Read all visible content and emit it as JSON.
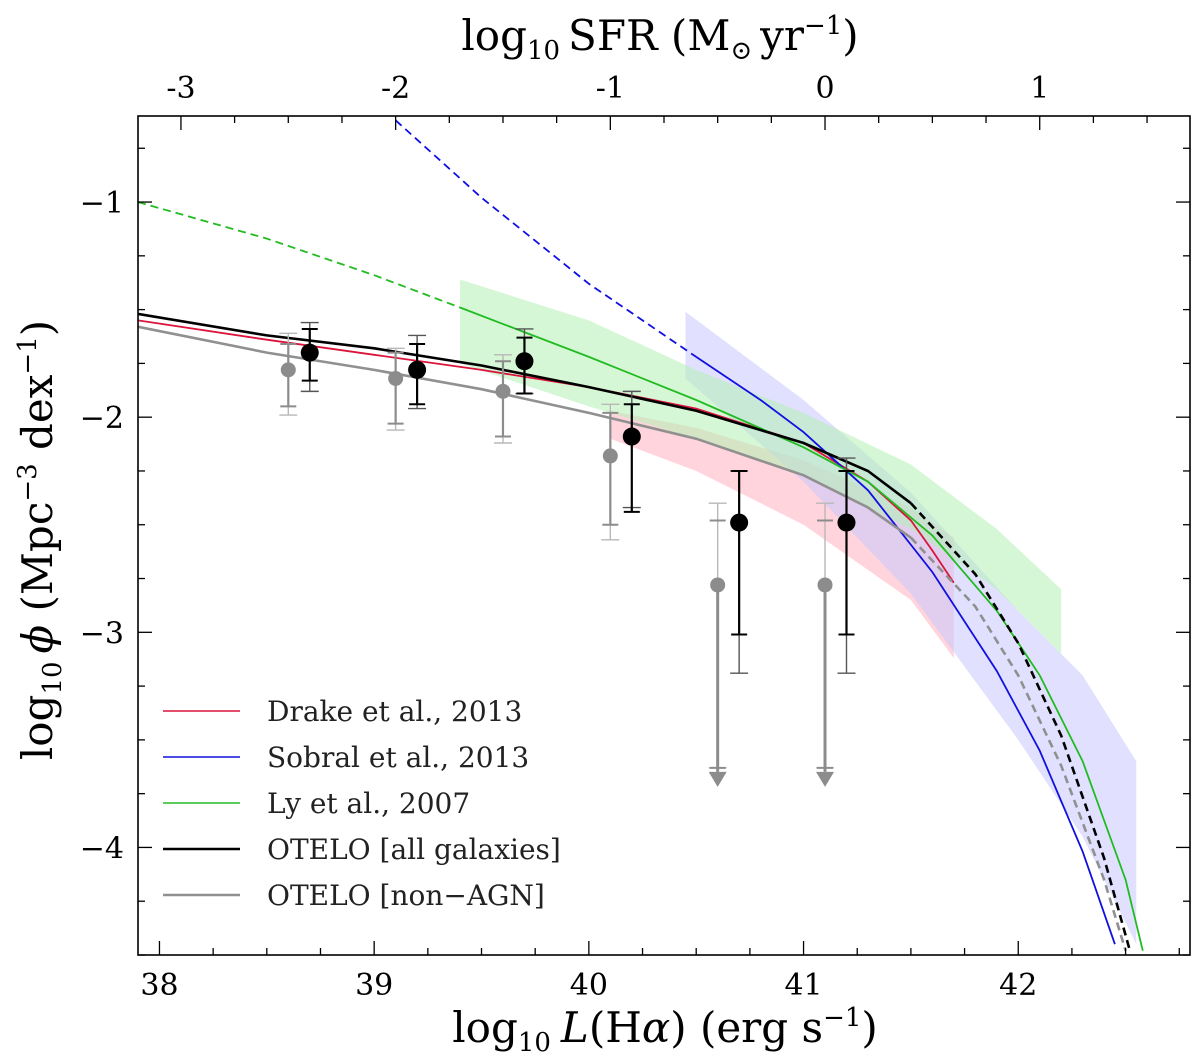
{
  "chart_data": {
    "type": "line",
    "xlabel": "log10 L(Hα) (erg s−1)",
    "ylabel": "log10 φ (Mpc−3 dex−1)",
    "top_xlabel": "log10 SFR (M⊙ yr−1)",
    "xlim": [
      37.9,
      42.8
    ],
    "ylim": [
      -4.5,
      -0.6
    ],
    "xticks": [
      "38",
      "39",
      "40",
      "41",
      "42"
    ],
    "yticks": [
      "−1",
      "−2",
      "−3",
      "−4"
    ],
    "top_xtick_values": [
      -3,
      -2,
      -1,
      0,
      1
    ],
    "top_xticks": [
      "-3",
      "-2",
      "-1",
      "0",
      "1"
    ],
    "top_axis_offset": 41.1,
    "legend_position": "lower-left",
    "series": [
      {
        "name": "Drake et al., 2013",
        "color": "#dc143c",
        "solid": [
          [
            37.9,
            -1.55
          ],
          [
            38.5,
            -1.64
          ],
          [
            39.0,
            -1.71
          ],
          [
            39.5,
            -1.78
          ],
          [
            40.0,
            -1.86
          ],
          [
            40.5,
            -1.96
          ],
          [
            41.0,
            -2.12
          ],
          [
            41.3,
            -2.3
          ],
          [
            41.5,
            -2.48
          ],
          [
            41.6,
            -2.62
          ],
          [
            41.7,
            -2.77
          ]
        ],
        "dashed": [],
        "band": [
          [
            40.1,
            -1.97,
            -2.1
          ],
          [
            40.5,
            -2.05,
            -2.25
          ],
          [
            41.0,
            -2.2,
            -2.5
          ],
          [
            41.5,
            -2.42,
            -2.85
          ],
          [
            41.7,
            -2.56,
            -3.12
          ]
        ],
        "band_color": "#ffb0c0"
      },
      {
        "name": "Sobral et al., 2013",
        "color": "#1010e0",
        "solid": [
          [
            40.5,
            -1.72
          ],
          [
            40.8,
            -1.92
          ],
          [
            41.0,
            -2.07
          ],
          [
            41.3,
            -2.34
          ],
          [
            41.6,
            -2.72
          ],
          [
            41.9,
            -3.18
          ],
          [
            42.1,
            -3.55
          ],
          [
            42.3,
            -4.02
          ],
          [
            42.45,
            -4.45
          ]
        ],
        "dashed": [
          [
            39.1,
            -0.62
          ],
          [
            39.5,
            -0.98
          ],
          [
            40.0,
            -1.38
          ],
          [
            40.5,
            -1.72
          ]
        ],
        "band": [
          [
            40.45,
            -1.51,
            -1.82
          ],
          [
            41.0,
            -1.92,
            -2.3
          ],
          [
            41.5,
            -2.35,
            -2.82
          ],
          [
            42.0,
            -2.9,
            -3.5
          ],
          [
            42.3,
            -3.2,
            -3.95
          ],
          [
            42.55,
            -3.6,
            -4.45
          ]
        ],
        "band_color": "#c8c8ff"
      },
      {
        "name": "Ly et al., 2007",
        "color": "#22bb22",
        "solid": [
          [
            39.4,
            -1.49
          ],
          [
            40.0,
            -1.72
          ],
          [
            40.5,
            -1.92
          ],
          [
            41.0,
            -2.14
          ],
          [
            41.3,
            -2.3
          ],
          [
            41.6,
            -2.55
          ],
          [
            41.9,
            -2.9
          ],
          [
            42.1,
            -3.2
          ],
          [
            42.3,
            -3.6
          ],
          [
            42.5,
            -4.15
          ],
          [
            42.58,
            -4.48
          ]
        ],
        "dashed": [
          [
            37.9,
            -1.0
          ],
          [
            38.5,
            -1.17
          ],
          [
            39.0,
            -1.34
          ],
          [
            39.4,
            -1.49
          ]
        ],
        "band": [
          [
            39.4,
            -1.36,
            -1.75
          ],
          [
            40.0,
            -1.55,
            -1.95
          ],
          [
            40.5,
            -1.78,
            -2.1
          ],
          [
            41.0,
            -1.98,
            -2.27
          ],
          [
            41.5,
            -2.22,
            -2.52
          ],
          [
            41.9,
            -2.52,
            -2.8
          ],
          [
            42.2,
            -2.8,
            -3.1
          ]
        ],
        "band_color": "#b4f0b4"
      },
      {
        "name": "OTELO [all galaxies]",
        "color": "#000000",
        "solid": [
          [
            37.9,
            -1.52
          ],
          [
            38.5,
            -1.62
          ],
          [
            39.0,
            -1.68
          ],
          [
            39.5,
            -1.76
          ],
          [
            40.0,
            -1.86
          ],
          [
            40.5,
            -1.97
          ],
          [
            41.0,
            -2.12
          ],
          [
            41.3,
            -2.25
          ],
          [
            41.5,
            -2.4
          ]
        ],
        "dashed": [
          [
            41.5,
            -2.4
          ],
          [
            41.8,
            -2.73
          ],
          [
            42.0,
            -3.05
          ],
          [
            42.2,
            -3.48
          ],
          [
            42.4,
            -4.05
          ],
          [
            42.52,
            -4.48
          ]
        ],
        "band": [],
        "band_color": ""
      },
      {
        "name": "OTELO [non−AGN]",
        "color": "#909090",
        "solid": [
          [
            37.9,
            -1.58
          ],
          [
            38.5,
            -1.7
          ],
          [
            39.0,
            -1.78
          ],
          [
            39.5,
            -1.87
          ],
          [
            40.0,
            -1.98
          ],
          [
            40.5,
            -2.1
          ],
          [
            41.0,
            -2.27
          ],
          [
            41.3,
            -2.42
          ],
          [
            41.5,
            -2.56
          ]
        ],
        "dashed": [
          [
            41.5,
            -2.56
          ],
          [
            41.8,
            -2.88
          ],
          [
            42.0,
            -3.2
          ],
          [
            42.2,
            -3.62
          ],
          [
            42.4,
            -4.15
          ],
          [
            42.5,
            -4.48
          ]
        ],
        "band": [],
        "band_color": ""
      }
    ],
    "points": [
      {
        "set": "all",
        "x": 38.7,
        "y": -1.7,
        "err_lo": 0.13,
        "err_hi": 0.11,
        "err_lo2": 0.18,
        "err_hi2": 0.14,
        "upper_limit": false
      },
      {
        "set": "all",
        "x": 39.2,
        "y": -1.78,
        "err_lo": 0.16,
        "err_hi": 0.12,
        "err_lo2": 0.18,
        "err_hi2": 0.16,
        "upper_limit": false
      },
      {
        "set": "all",
        "x": 39.7,
        "y": -1.74,
        "err_lo": 0.15,
        "err_hi": 0.11,
        "err_lo2": 0.15,
        "err_hi2": 0.15,
        "upper_limit": false
      },
      {
        "set": "all",
        "x": 40.2,
        "y": -2.09,
        "err_lo": 0.35,
        "err_hi": 0.15,
        "err_lo2": 0.33,
        "err_hi2": 0.21,
        "upper_limit": false
      },
      {
        "set": "all",
        "x": 40.7,
        "y": -2.49,
        "err_lo": 0.52,
        "err_hi": 0.24,
        "err_lo2": 0.7,
        "err_hi2": 0.24,
        "upper_limit": false
      },
      {
        "set": "all",
        "x": 41.2,
        "y": -2.49,
        "err_lo": 0.52,
        "err_hi": 0.24,
        "err_lo2": 0.7,
        "err_hi2": 0.3,
        "upper_limit": false
      },
      {
        "set": "nonagn",
        "x": 38.6,
        "y": -1.78,
        "err_lo": 0.17,
        "err_hi": 0.12,
        "err_lo2": 0.21,
        "err_hi2": 0.17,
        "upper_limit": false
      },
      {
        "set": "nonagn",
        "x": 39.1,
        "y": -1.82,
        "err_lo": 0.21,
        "err_hi": 0.12,
        "err_lo2": 0.24,
        "err_hi2": 0.14,
        "upper_limit": false
      },
      {
        "set": "nonagn",
        "x": 39.6,
        "y": -1.88,
        "err_lo": 0.21,
        "err_hi": 0.14,
        "err_lo2": 0.24,
        "err_hi2": 0.17,
        "upper_limit": false
      },
      {
        "set": "nonagn",
        "x": 40.1,
        "y": -2.18,
        "err_lo": 0.32,
        "err_hi": 0.2,
        "err_lo2": 0.39,
        "err_hi2": 0.24,
        "upper_limit": false
      },
      {
        "set": "nonagn",
        "x": 40.6,
        "y": -2.78,
        "err_lo": 0.85,
        "err_hi": 0.3,
        "err_lo2": 0.85,
        "err_hi2": 0.38,
        "upper_limit": true
      },
      {
        "set": "nonagn",
        "x": 41.1,
        "y": -2.78,
        "err_lo": 0.85,
        "err_hi": 0.3,
        "err_lo2": 0.85,
        "err_hi2": 0.38,
        "upper_limit": true
      }
    ]
  }
}
